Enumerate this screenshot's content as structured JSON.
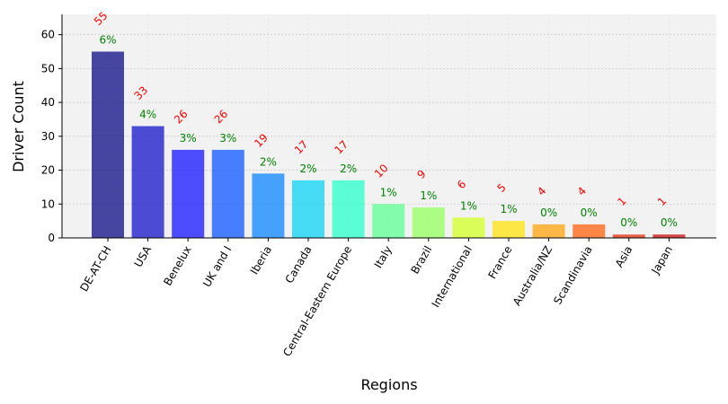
{
  "chart_data": {
    "type": "bar",
    "xlabel": "Regions",
    "ylabel": "Driver Count",
    "ylim": [
      0,
      66
    ],
    "yticks": [
      0,
      10,
      20,
      30,
      40,
      50,
      60
    ],
    "grid": true,
    "categories": [
      "DE-AT-CH",
      "USA",
      "Benelux",
      "UK and I",
      "Iberia",
      "Canada",
      "Central-Eastern Europe",
      "Italy",
      "Brazil",
      "International",
      "France",
      "Australia/NZ",
      "Scandinavia",
      "Asia",
      "Japan"
    ],
    "values": [
      55,
      33,
      26,
      26,
      19,
      17,
      17,
      10,
      9,
      6,
      5,
      4,
      4,
      1,
      1
    ],
    "count_labels": [
      "55",
      "33",
      "26",
      "26",
      "19",
      "17",
      "17",
      "10",
      "9",
      "6",
      "5",
      "4",
      "4",
      "1",
      "1"
    ],
    "percent_labels": [
      "6%",
      "4%",
      "3%",
      "3%",
      "2%",
      "2%",
      "2%",
      "1%",
      "1%",
      "1%",
      "1%",
      "0%",
      "0%",
      "0%",
      "0%"
    ],
    "bar_colors": [
      "#1a1a8c",
      "#2121cc",
      "#2222ff",
      "#1a60ff",
      "#1a8cff",
      "#1ad4f5",
      "#33ffcc",
      "#66ff99",
      "#99ff66",
      "#d4ff33",
      "#ffe41a",
      "#ffa81a",
      "#ff6a1a",
      "#e63a1a",
      "#cc1a1a"
    ],
    "count_label_color": "#ff0000",
    "percent_label_color": "#008000",
    "background_color": "#f2f2f2"
  }
}
